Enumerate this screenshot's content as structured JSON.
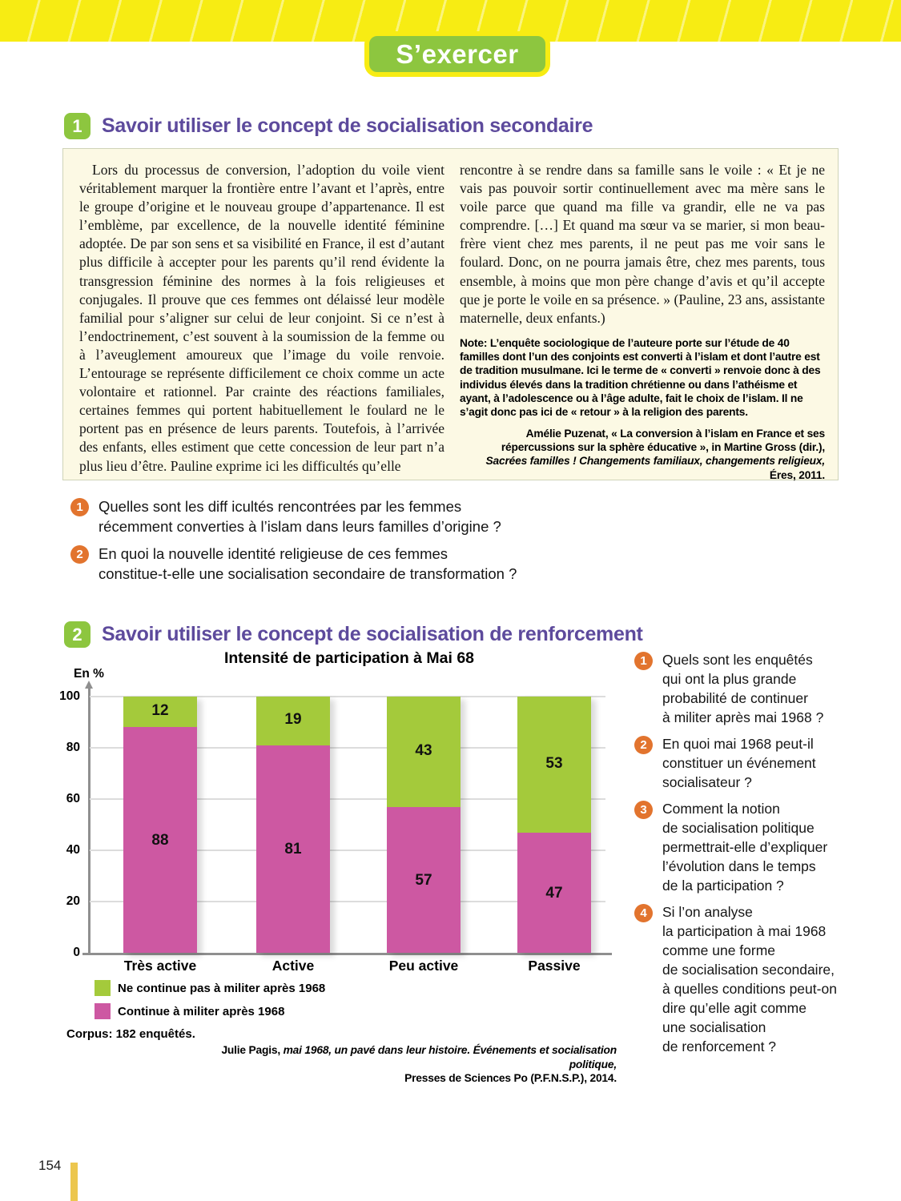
{
  "page_number": "154",
  "header": {
    "badge_label": "S’exercer"
  },
  "colors": {
    "accent_yellow": "#f7ec13",
    "badge_green": "#8dc63f",
    "heading_purple": "#5d4a9c",
    "question_orange": "#e2742e",
    "bar_pink": "#cd58a2",
    "bar_green": "#a4ca3b",
    "doc_background": "#fcf9e4",
    "page_bar_gold": "#ecc64e"
  },
  "exercise1": {
    "number": "1",
    "title": "Savoir utiliser le concept de socialisation secondaire",
    "document": {
      "column_left": "Lors du processus de conversion, l’adoption du voile vient véritablement marquer la frontière entre l’avant et l’après, entre le groupe d’origine et le nouveau groupe d’appartenance. Il est l’emblème, par excellence, de la nouvelle identité féminine adoptée. De par son sens et sa visibilité en France, il est d’autant plus difficile à accepter pour les parents qu’il rend évidente la transgression féminine des normes à la fois religieuses et conjugales. Il prouve que ces femmes ont délaissé leur modèle familial pour s’aligner sur celui de leur conjoint. Si ce n’est à l’endoctrinement, c’est souvent à la soumission de la femme ou à l’aveuglement amoureux que l’image du voile renvoie. L’entourage se représente difficilement ce choix comme un acte volontaire et rationnel. Par crainte des réactions familiales, certaines femmes qui portent habituellement le foulard ne le portent pas en présence de leurs parents. Toutefois, à l’arrivée des enfants, elles estiment que cette concession de leur part n’a plus lieu d’être. Pauline exprime ici les difficultés qu’elle",
      "column_right": "rencontre à se rendre dans sa famille sans le voile : « Et je ne vais pas pouvoir sortir continuellement avec ma mère sans le voile parce que quand ma fille va grandir, elle ne va pas comprendre. […] Et quand ma sœur va se marier, si mon beau-frère vient chez mes parents, il ne peut pas me voir sans le foulard. Donc, on ne pourra jamais être, chez mes parents, tous ensemble, à moins que mon père change d’avis et qu’il accepte que je porte le voile en sa présence. » (Pauline, 23 ans, assistante maternelle, deux enfants.)",
      "note": "Note: L’enquête sociologique de l’auteure porte sur l’étude de 40 familles dont l’un des conjoints est converti à l’islam et dont l’autre est de tradition musulmane. Ici le terme de « converti » renvoie donc à des individus élevés dans la tradition chrétienne ou dans l’athéisme et ayant, à l’adolescence ou à l’âge adulte, fait le choix de l’islam. Il ne s’agit donc pas ici de « retour » à la religion des parents.",
      "source": {
        "prefix": "Amélie Puzenat, « La conversion à l’islam en France et ses répercussions sur la sphère éducative », in Martine Gross (dir.), ",
        "title_italic": "Sacrées familles ! Changements familiaux, changements religieux,",
        "suffix": " Éres, 2011."
      }
    },
    "questions": [
      {
        "num": "1",
        "text": "Quelles sont les diff icultés rencontrées par les femmes\nrécemment converties à l’islam dans leurs familles d’origine ?"
      },
      {
        "num": "2",
        "text": "En quoi la nouvelle identité religieuse de ces femmes\nconstitue-t-elle une socialisation secondaire de transformation ?"
      }
    ]
  },
  "exercise2": {
    "number": "2",
    "title": "Savoir utiliser le concept de socialisation de renforcement",
    "corpus": "Corpus: 182 enquêtés.",
    "source": {
      "author": "Julie Pagis, ",
      "title_italic": "mai 1968, un pavé dans leur histoire. Événements et socialisation politique,",
      "publisher": "Presses de Sciences Po (P.F.N.S.P.), 2014."
    },
    "questions": [
      {
        "num": "1",
        "text": "Quels sont les enquêtés\nqui ont la plus grande\nprobabilité de continuer\nà militer après mai 1968 ?"
      },
      {
        "num": "2",
        "text": "En quoi mai 1968 peut-il\nconstituer un événement\nsocialisateur ?"
      },
      {
        "num": "3",
        "text": "Comment la notion\nde socialisation politique\npermettrait-elle d’expliquer\nl’évolution dans le temps\nde la participation ?"
      },
      {
        "num": "4",
        "text": "Si l’on analyse\nla participation à mai 1968\ncomme une forme\nde socialisation secondaire,\nà quelles conditions peut-on\ndire qu’elle agit comme\nune socialisation\nde renforcement ?"
      }
    ]
  },
  "chart_data": {
    "type": "bar",
    "stacked": true,
    "title": "Intensité de participation à Mai 68",
    "ylabel": "En %",
    "categories": [
      "Très active",
      "Active",
      "Peu active",
      "Passive"
    ],
    "series": [
      {
        "name": "Continue à militer après 1968",
        "color": "#cd58a2",
        "values": [
          88,
          81,
          57,
          47
        ]
      },
      {
        "name": "Ne continue pas à militer après 1968",
        "color": "#a4ca3b",
        "values": [
          12,
          19,
          43,
          53
        ]
      }
    ],
    "ylim": [
      0,
      100
    ],
    "yticks": [
      0,
      20,
      40,
      60,
      80,
      100
    ],
    "grid": true,
    "legend_position": "bottom-left"
  }
}
